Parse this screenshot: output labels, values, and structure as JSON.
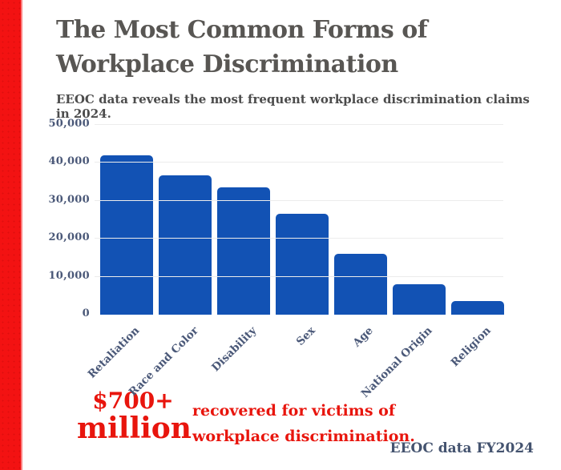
{
  "page": {
    "background": "#ffffff",
    "accent_red": "#f31212",
    "text_red": "#e8150d",
    "bar_blue": "#1252b4",
    "slate_text": "#4a5878",
    "title_gray": "#585653"
  },
  "header": {
    "title_line1": "The Most Common Forms of",
    "title_line2": "Workplace Discrimination",
    "subtitle": "EEOC data reveals the most frequent workplace discrimination claims in 2024."
  },
  "chart_data": {
    "type": "bar",
    "title": "",
    "xlabel": "",
    "ylabel": "",
    "categories": [
      "Retaliation",
      "Race and Color",
      "Disability",
      "Sex",
      "Age",
      "National Origin",
      "Religion"
    ],
    "values": [
      42000,
      36800,
      33500,
      26600,
      16000,
      8000,
      3600
    ],
    "ylim": [
      0,
      50000
    ],
    "yticks": [
      0,
      10000,
      20000,
      30000,
      40000,
      50000
    ],
    "ytick_labels": [
      "0",
      "10,000",
      "20,000",
      "30,000",
      "40,000",
      "50,000"
    ],
    "grid": true,
    "legend": false,
    "bar_color": "#1252b4"
  },
  "stat": {
    "amount_line1": "$700+",
    "amount_line2": "million",
    "desc_line1": "recovered for victims of",
    "desc_line2": "workplace discrimination."
  },
  "footer": {
    "source": "EEOC data FY2024"
  }
}
